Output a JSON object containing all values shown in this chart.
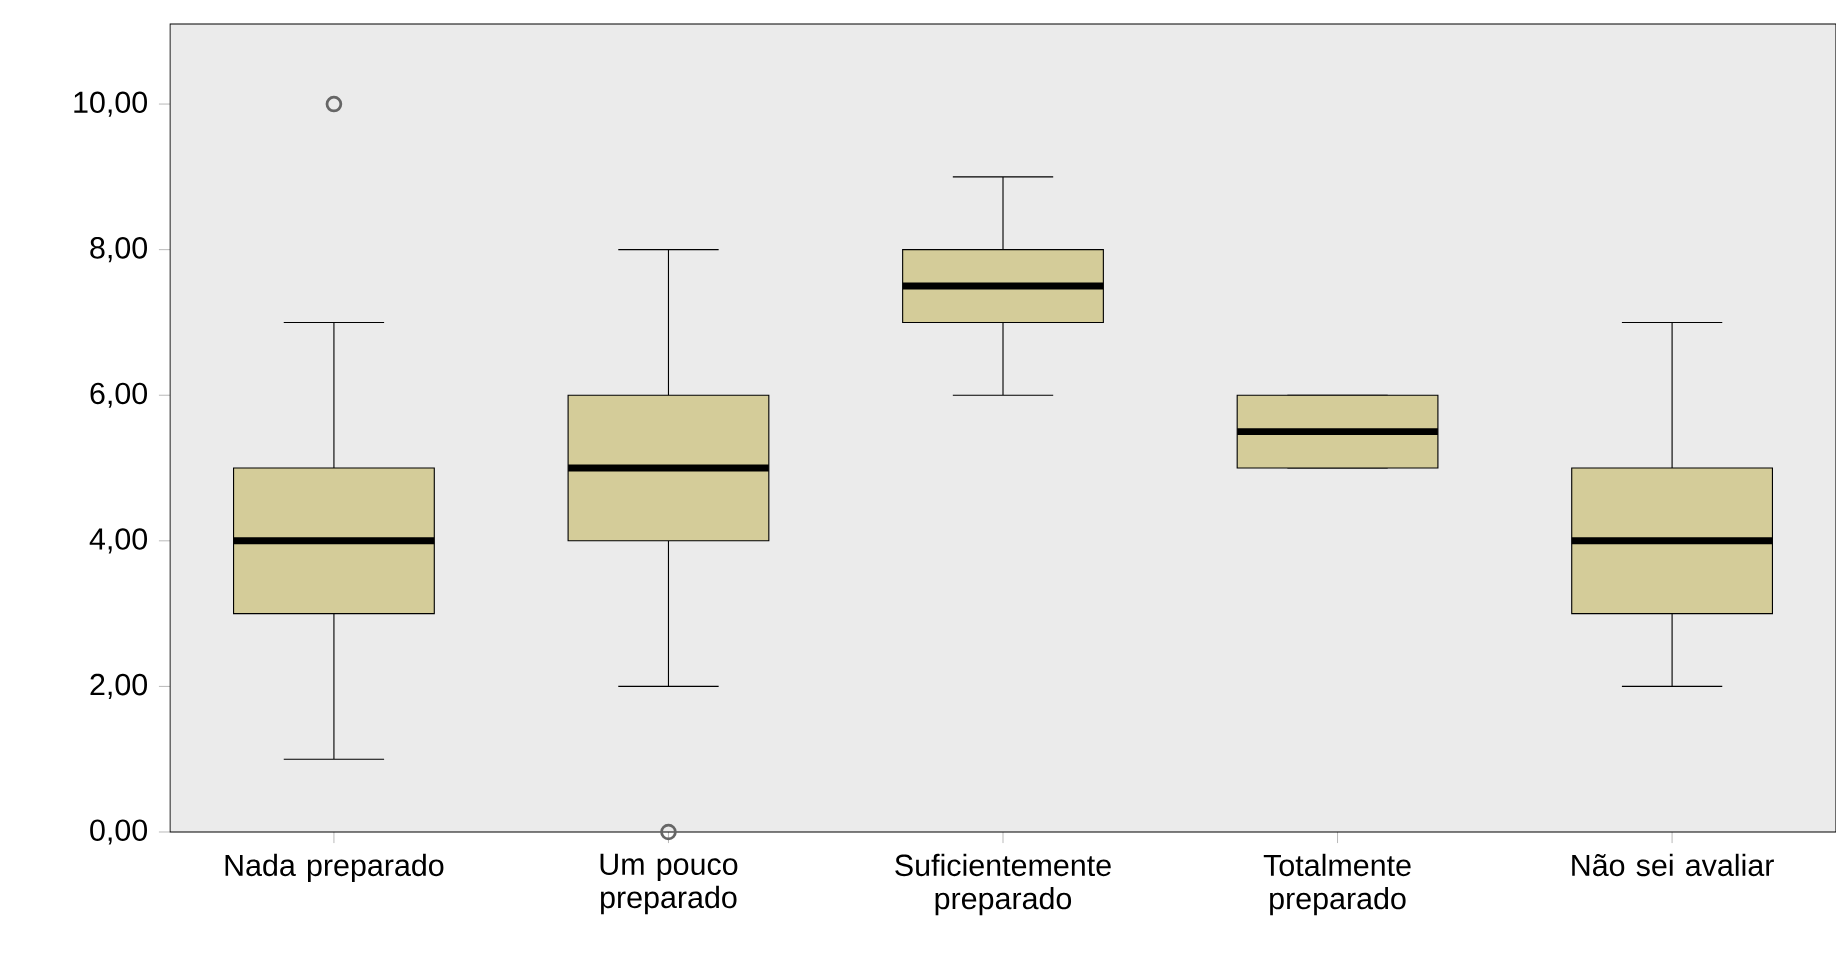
{
  "chart_data": {
    "type": "box",
    "categories": [
      "Nada preparado",
      "Um pouco preparado",
      "Suficientemente preparado",
      "Totalmente preparado",
      "Não sei avaliar"
    ],
    "boxes": [
      {
        "low": 1,
        "q1": 3,
        "median": 4,
        "q3": 5,
        "high": 7,
        "outliers": [
          10
        ]
      },
      {
        "low": 2,
        "q1": 4,
        "median": 5,
        "q3": 6,
        "high": 8,
        "outliers": [
          0
        ]
      },
      {
        "low": 6,
        "q1": 7,
        "median": 7.5,
        "q3": 8,
        "high": 9
      },
      {
        "low": 5,
        "q1": 5,
        "median": 5.5,
        "q3": 6,
        "high": 6
      },
      {
        "low": 2,
        "q1": 3,
        "median": 4,
        "q3": 5,
        "high": 7
      }
    ],
    "color": "#d4cc99",
    "ylim": [
      0,
      11.1
    ],
    "yticks": [
      {
        "value": 0,
        "label": "0,00"
      },
      {
        "value": 2,
        "label": "2,00"
      },
      {
        "value": 4,
        "label": "4,00"
      },
      {
        "value": 6,
        "label": "6,00"
      },
      {
        "value": 8,
        "label": "8,00"
      },
      {
        "value": 10,
        "label": "10,00"
      }
    ]
  }
}
